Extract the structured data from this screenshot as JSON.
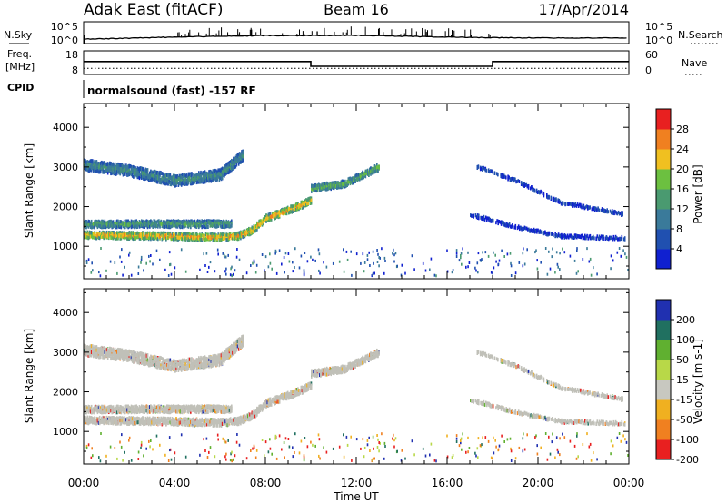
{
  "header": {
    "title": "Adak East (fitACF)",
    "beam": "Beam 16",
    "date": "17/Apr/2014"
  },
  "time_axis": {
    "ticks": [
      "00:00",
      "04:00",
      "08:00",
      "12:00",
      "16:00",
      "20:00",
      "00:00"
    ],
    "label": "Time UT"
  },
  "nsky_panel": {
    "left_label": "N.Sky",
    "right_label": "N.Search",
    "left_ticks": [
      "10^5",
      "10^0"
    ],
    "right_ticks": [
      "10^5",
      "10^0"
    ]
  },
  "freq_panel": {
    "left_label_1": "Freq.",
    "left_label_2": "[MHz]",
    "right_label": "Nave",
    "left_ticks": [
      "18",
      "8"
    ],
    "right_ticks": [
      "60",
      "0"
    ]
  },
  "cpid_panel": {
    "label": "CPID",
    "text": "normalsound (fast) -157 RF"
  },
  "power_panel": {
    "ylabel": "Slant Range [km]",
    "yticks": [
      "1000",
      "2000",
      "3000",
      "4000"
    ],
    "colorbar_label": "Power [dB]",
    "colorbar_ticks": [
      "4",
      "8",
      "12",
      "16",
      "20",
      "24",
      "28"
    ]
  },
  "velocity_panel": {
    "ylabel": "Slant Range [km]",
    "yticks": [
      "1000",
      "2000",
      "3000",
      "4000"
    ],
    "colorbar_label": "Velocity [m s-1]",
    "colorbar_ticks": [
      "200",
      "100",
      "50",
      "15",
      "-15",
      "-50",
      "-100",
      "-200"
    ]
  },
  "colors": {
    "power_scale": [
      "#1020d0",
      "#2050b0",
      "#3a7a9a",
      "#4a9a70",
      "#6cc040",
      "#f0c020",
      "#f08020",
      "#e82020"
    ],
    "velocity_scale": [
      "#2030b0",
      "#207060",
      "#60b030",
      "#b8d848",
      "#c8c8c0",
      "#f0b020",
      "#f08020",
      "#e82020"
    ],
    "ground_scatter": "#c0c0b8"
  },
  "chart_data": [
    {
      "type": "heatmap",
      "panel": "power",
      "x_range_hours": [
        0,
        24
      ],
      "y_range_km": [
        180,
        4600
      ],
      "value_unit": "dB",
      "value_range": [
        0,
        32
      ],
      "features": [
        {
          "name_hint": "band",
          "t": [
            0.0,
            3.0,
            6.0,
            6.8,
            7.4,
            8.0,
            9.2,
            10.0
          ],
          "range_km": [
            1280,
            1260,
            1220,
            1260,
            1400,
            1700,
            1950,
            2150
          ],
          "power_dB": 26
        },
        {
          "name_hint": "band",
          "t": [
            0.0,
            3.0,
            6.5
          ],
          "range_km": [
            1550,
            1560,
            1560
          ],
          "power_dB": 16
        },
        {
          "name_hint": "band",
          "t": [
            0.0,
            2.0,
            4.0,
            6.0,
            7.0
          ],
          "range_km": [
            3050,
            2900,
            2650,
            2800,
            3300
          ],
          "power_dB": 13
        },
        {
          "name_hint": "band",
          "t": [
            10.0,
            11.5,
            13.0
          ],
          "range_km": [
            2450,
            2580,
            3000
          ],
          "power_dB": 18
        },
        {
          "name_hint": "band",
          "t": [
            17.3,
            19.0,
            21.0,
            23.8
          ],
          "range_km": [
            3000,
            2650,
            2100,
            1800
          ],
          "power_dB": 6
        },
        {
          "name_hint": "band",
          "t": [
            17.0,
            19.0,
            21.0,
            23.8
          ],
          "range_km": [
            1800,
            1480,
            1250,
            1200
          ],
          "power_dB": 5
        }
      ]
    },
    {
      "type": "heatmap",
      "panel": "velocity",
      "x_range_hours": [
        0,
        24
      ],
      "y_range_km": [
        180,
        4600
      ],
      "value_unit": "m s-1",
      "value_range": [
        -250,
        250
      ],
      "note_values": "Most echoes are ground scatter (|v| < 15 m s-1), scattered orange/red and green/blue cells at edges"
    },
    {
      "type": "line",
      "panel": "nsky",
      "x_hours": [
        0.0,
        2.0,
        4.0,
        6.0,
        8.0,
        10.0,
        12.0,
        14.0,
        16.0,
        18.0,
        20.0,
        22.0,
        24.0
      ],
      "values_log10": [
        0.3,
        0.6,
        1.0,
        1.3,
        1.5,
        1.5,
        1.6,
        1.3,
        1.0,
        0.8,
        0.7,
        0.7,
        0.6
      ]
    },
    {
      "type": "line",
      "panel": "frequency",
      "x_hours": [
        0.0,
        10.0,
        10.0,
        18.0,
        18.0,
        24.0
      ],
      "freq_MHz": [
        13.6,
        13.6,
        11.0,
        11.0,
        13.6,
        13.6
      ],
      "nave": [
        11,
        11,
        11,
        11,
        11,
        11
      ]
    }
  ]
}
